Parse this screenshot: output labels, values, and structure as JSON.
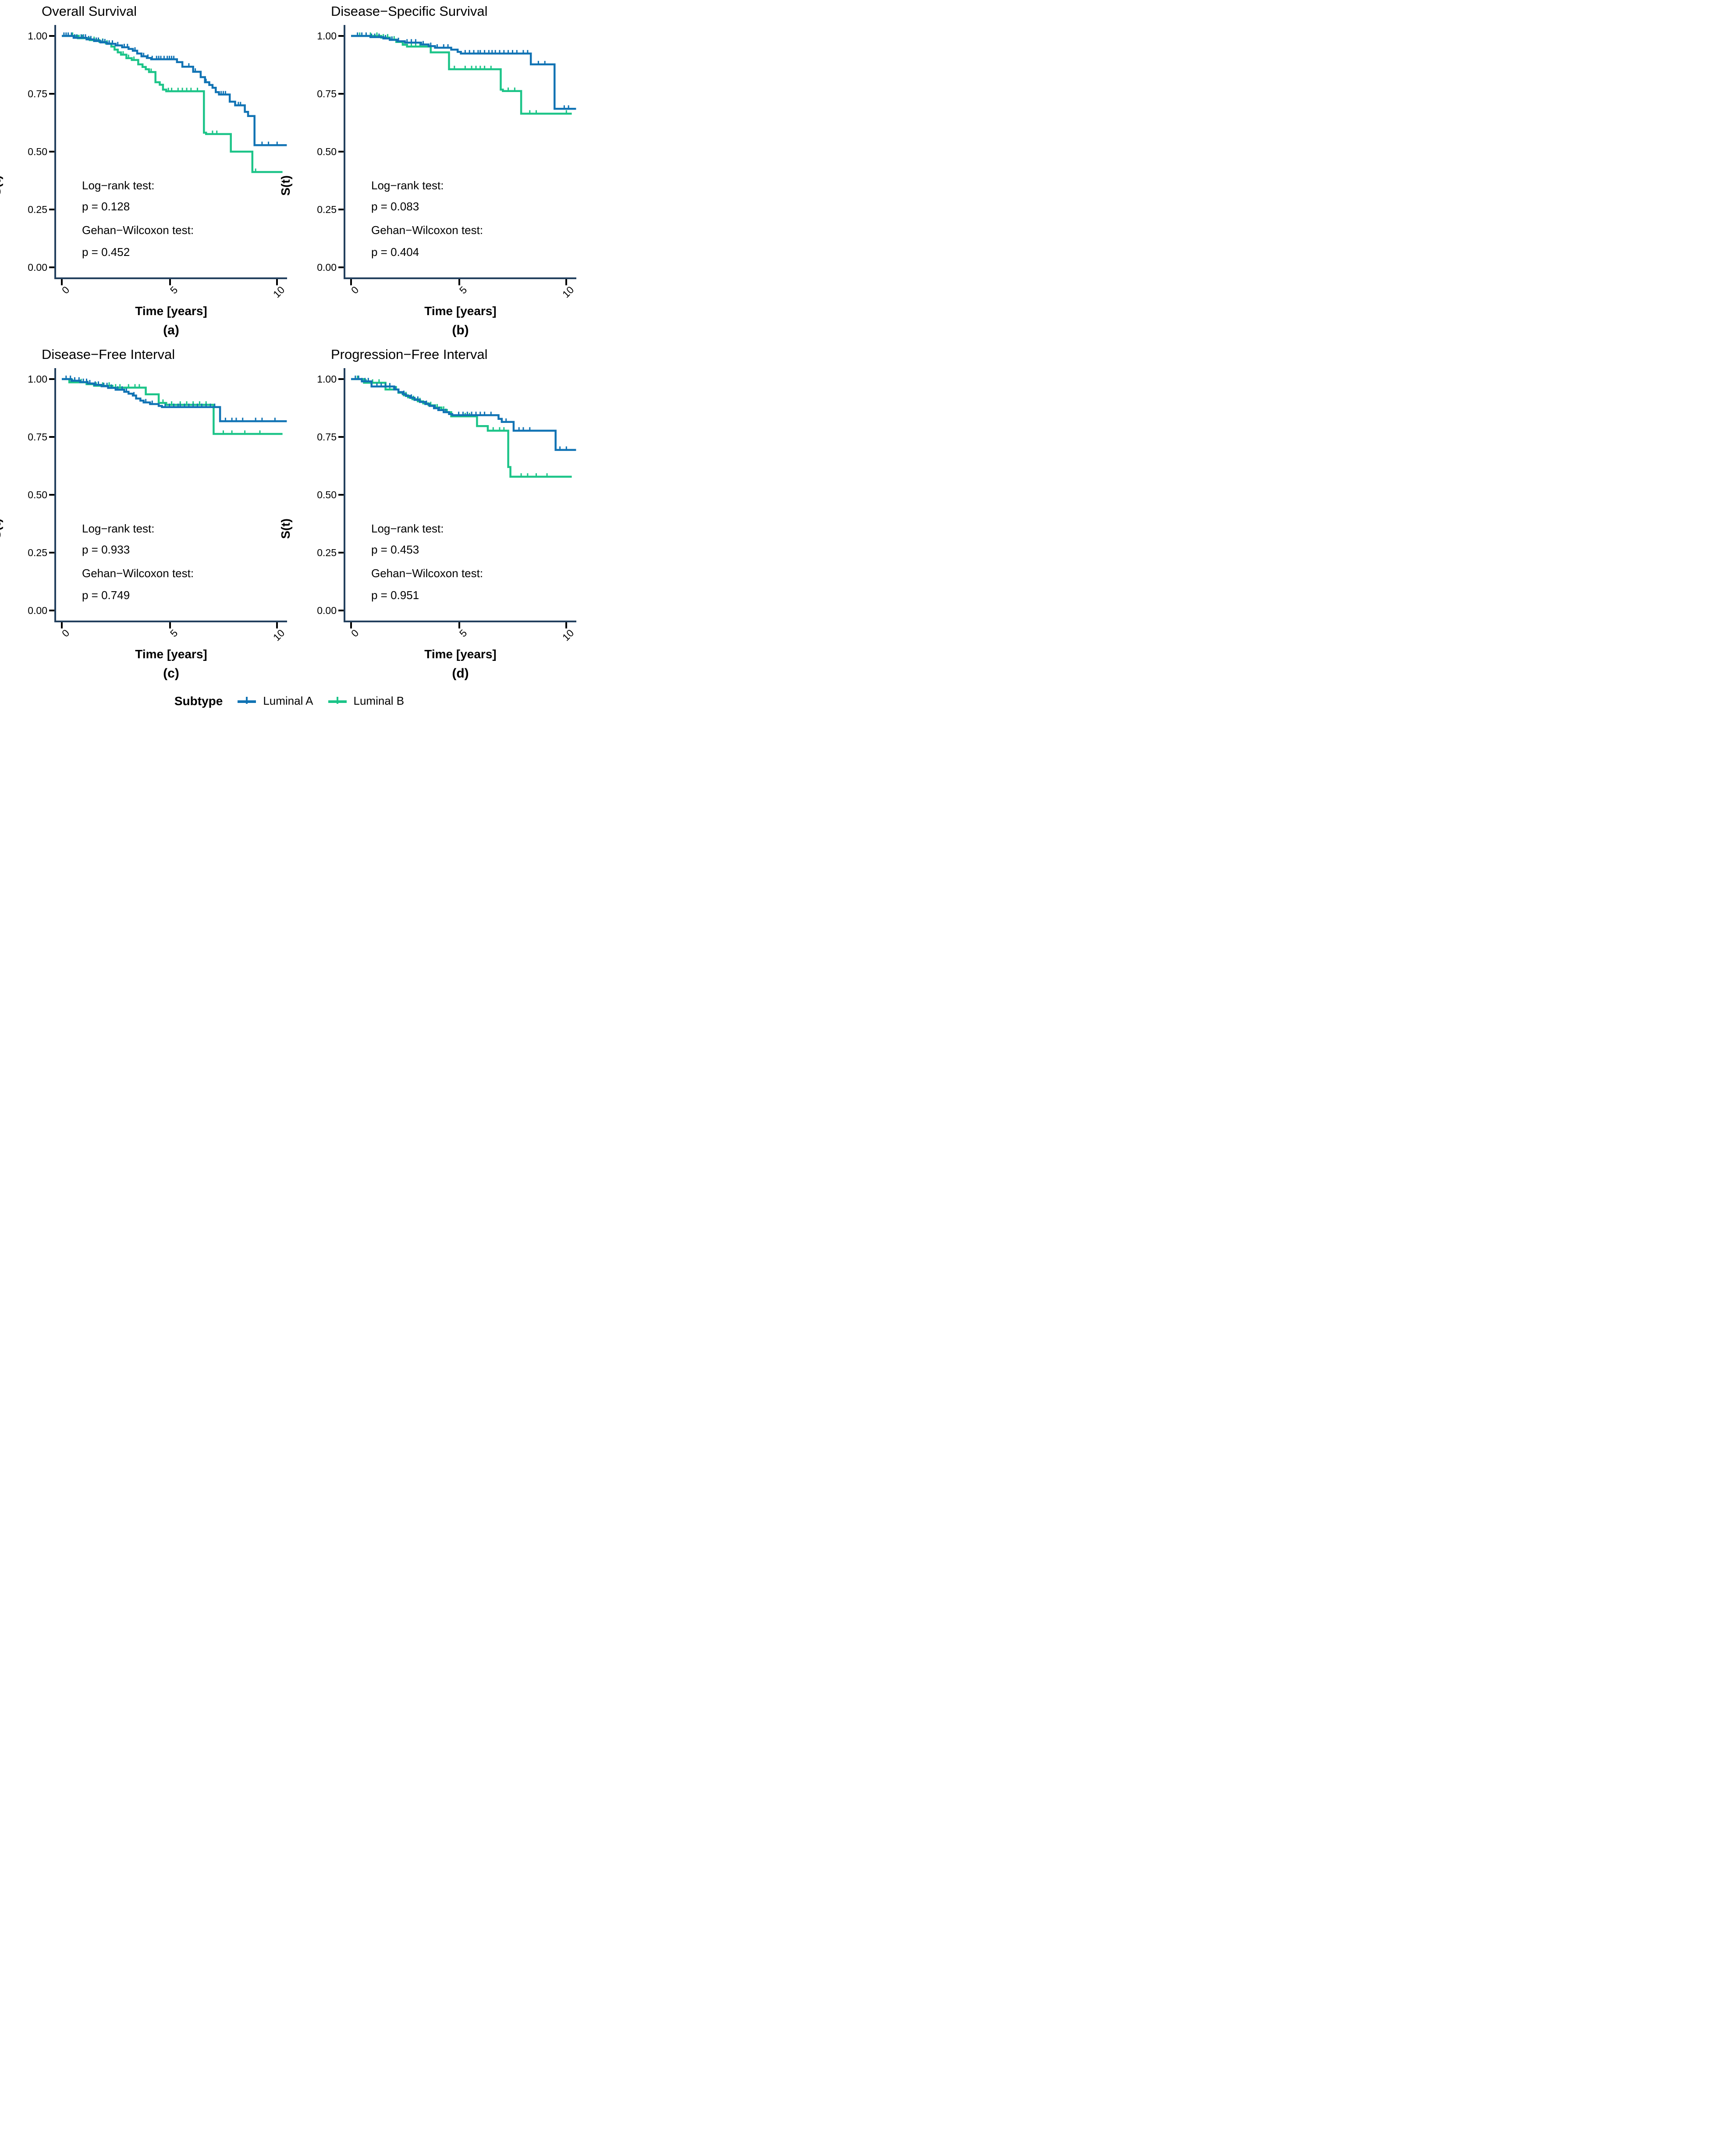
{
  "figure": {
    "y_label": "S(t)",
    "x_label": "Time [years]",
    "y_ticks": [
      "1.00",
      "0.75",
      "0.50",
      "0.25",
      "0.00"
    ],
    "x_ticks": [
      "0",
      "5",
      "10"
    ]
  },
  "colors": {
    "luminal_a": "#1173B4",
    "luminal_b": "#1CC488",
    "axis_line": "#23405E",
    "tick": "#000000",
    "text": "#000000"
  },
  "legend": {
    "title": "Subtype",
    "items": [
      {
        "label": "Luminal A",
        "color": "#1173B4"
      },
      {
        "label": "Luminal B",
        "color": "#1CC488"
      }
    ]
  },
  "chart_data": [
    {
      "type": "line",
      "subtype": "kaplan-meier-step",
      "title": "Overall Survival",
      "caption": "(a)",
      "xlabel": "Time [years]",
      "ylabel": "S(t)",
      "xlim": [
        0,
        10.5
      ],
      "ylim": [
        0,
        1.05
      ],
      "x_tick_values": [
        0,
        5,
        10
      ],
      "y_tick_values": [
        1.0,
        0.75,
        0.5,
        0.25,
        0.0
      ],
      "grid": false,
      "annotations": {
        "logrank_label": "Log−rank test:",
        "logrank_p": "p = 0.128",
        "wilcoxon_label": "Gehan−Wilcoxon test:",
        "wilcoxon_p": "p = 0.452"
      },
      "series": [
        {
          "name": "Luminal A",
          "color": "#1173B4",
          "end_t": 10.45,
          "step_points": [
            [
              0,
              1
            ],
            [
              0.55,
              0.992
            ],
            [
              1.15,
              0.985
            ],
            [
              1.5,
              0.978
            ],
            [
              1.8,
              0.972
            ],
            [
              2.1,
              0.966
            ],
            [
              2.5,
              0.959
            ],
            [
              2.8,
              0.951
            ],
            [
              3.1,
              0.944
            ],
            [
              3.3,
              0.936
            ],
            [
              3.5,
              0.924
            ],
            [
              3.7,
              0.912
            ],
            [
              3.95,
              0.905
            ],
            [
              4.15,
              0.899
            ],
            [
              5.35,
              0.887
            ],
            [
              5.6,
              0.867
            ],
            [
              6.1,
              0.845
            ],
            [
              6.45,
              0.822
            ],
            [
              6.65,
              0.8
            ],
            [
              6.85,
              0.788
            ],
            [
              7.0,
              0.776
            ],
            [
              7.15,
              0.757
            ],
            [
              7.3,
              0.747
            ],
            [
              7.8,
              0.716
            ],
            [
              8.05,
              0.7
            ],
            [
              8.5,
              0.672
            ],
            [
              8.65,
              0.654
            ],
            [
              8.95,
              0.528
            ]
          ],
          "censor_t": [
            0.1,
            0.2,
            0.3,
            0.45,
            0.6,
            0.7,
            0.9,
            1.0,
            1.1,
            1.25,
            1.35,
            1.6,
            1.7,
            1.9,
            2.0,
            2.2,
            2.35,
            2.6,
            2.9,
            3.05,
            3.4,
            3.8,
            4.0,
            4.2,
            4.4,
            4.5,
            4.6,
            4.75,
            4.9,
            5.0,
            5.1,
            5.2,
            5.9,
            6.2,
            6.7,
            7.4,
            7.5,
            7.6,
            8.2,
            8.3,
            9.3,
            9.6,
            10.0
          ]
        },
        {
          "name": "Luminal B",
          "color": "#1CC488",
          "end_t": 10.25,
          "step_points": [
            [
              0,
              1
            ],
            [
              0.75,
              0.99
            ],
            [
              1.3,
              0.982
            ],
            [
              1.75,
              0.974
            ],
            [
              2.05,
              0.967
            ],
            [
              2.3,
              0.954
            ],
            [
              2.45,
              0.941
            ],
            [
              2.6,
              0.929
            ],
            [
              2.75,
              0.919
            ],
            [
              3.0,
              0.904
            ],
            [
              3.25,
              0.896
            ],
            [
              3.55,
              0.877
            ],
            [
              3.75,
              0.866
            ],
            [
              3.9,
              0.856
            ],
            [
              4.05,
              0.844
            ],
            [
              4.35,
              0.8
            ],
            [
              4.55,
              0.789
            ],
            [
              4.7,
              0.768
            ],
            [
              4.85,
              0.761
            ],
            [
              6.6,
              0.582
            ],
            [
              6.7,
              0.576
            ],
            [
              7.85,
              0.5
            ],
            [
              8.85,
              0.412
            ]
          ],
          "censor_t": [
            0.5,
            0.8,
            0.95,
            1.1,
            1.5,
            1.9,
            2.1,
            2.85,
            3.1,
            3.35,
            4.15,
            4.95,
            5.1,
            5.4,
            5.6,
            5.8,
            6.0,
            6.3,
            7.0,
            7.2,
            9.0
          ]
        }
      ]
    },
    {
      "type": "line",
      "subtype": "kaplan-meier-step",
      "title": "Disease−Specific Survival",
      "caption": "(b)",
      "xlabel": "Time [years]",
      "ylabel": "S(t)",
      "xlim": [
        0,
        10.5
      ],
      "ylim": [
        0,
        1.05
      ],
      "x_tick_values": [
        0,
        5,
        10
      ],
      "y_tick_values": [
        1.0,
        0.75,
        0.5,
        0.25,
        0.0
      ],
      "grid": false,
      "annotations": {
        "logrank_label": "Log−rank test:",
        "logrank_p": "p = 0.083",
        "wilcoxon_label": "Gehan−Wilcoxon test:",
        "wilcoxon_p": "p = 0.404"
      },
      "series": [
        {
          "name": "Luminal A",
          "color": "#1173B4",
          "end_t": 10.45,
          "step_points": [
            [
              0,
              1
            ],
            [
              0.9,
              0.995
            ],
            [
              1.5,
              0.989
            ],
            [
              1.8,
              0.983
            ],
            [
              2.15,
              0.977
            ],
            [
              2.5,
              0.971
            ],
            [
              3.25,
              0.963
            ],
            [
              3.6,
              0.956
            ],
            [
              3.9,
              0.949
            ],
            [
              4.65,
              0.941
            ],
            [
              4.95,
              0.931
            ],
            [
              5.1,
              0.924
            ],
            [
              8.35,
              0.877
            ],
            [
              9.45,
              0.685
            ]
          ],
          "censor_t": [
            0.3,
            0.5,
            0.7,
            0.95,
            1.1,
            1.3,
            1.6,
            1.9,
            2.2,
            2.6,
            2.8,
            3.0,
            3.35,
            3.7,
            4.0,
            4.3,
            4.5,
            5.3,
            5.5,
            5.7,
            5.9,
            6.0,
            6.2,
            6.4,
            6.55,
            6.7,
            6.9,
            7.1,
            7.3,
            7.5,
            7.7,
            8.0,
            8.2,
            8.7,
            9.0,
            9.9,
            10.1
          ]
        },
        {
          "name": "Luminal B",
          "color": "#1CC488",
          "end_t": 10.25,
          "step_points": [
            [
              0,
              1
            ],
            [
              1.4,
              0.993
            ],
            [
              1.8,
              0.984
            ],
            [
              2.1,
              0.974
            ],
            [
              2.4,
              0.962
            ],
            [
              2.6,
              0.954
            ],
            [
              3.7,
              0.929
            ],
            [
              4.55,
              0.856
            ],
            [
              6.95,
              0.768
            ],
            [
              7.05,
              0.762
            ],
            [
              7.9,
              0.664
            ]
          ],
          "censor_t": [
            0.4,
            0.7,
            0.9,
            1.2,
            1.5,
            1.7,
            2.0,
            2.8,
            3.0,
            3.2,
            4.8,
            5.3,
            5.6,
            5.8,
            6.0,
            6.2,
            6.5,
            7.3,
            7.6,
            8.3,
            8.6,
            10.0
          ]
        }
      ]
    },
    {
      "type": "line",
      "subtype": "kaplan-meier-step",
      "title": "Disease−Free Interval",
      "caption": "(c)",
      "xlabel": "Time [years]",
      "ylabel": "S(t)",
      "xlim": [
        0,
        10.5
      ],
      "ylim": [
        0,
        1.05
      ],
      "x_tick_values": [
        0,
        5,
        10
      ],
      "y_tick_values": [
        1.0,
        0.75,
        0.5,
        0.25,
        0.0
      ],
      "grid": false,
      "annotations": {
        "logrank_label": "Log−rank test:",
        "logrank_p": "p = 0.933",
        "wilcoxon_label": "Gehan−Wilcoxon test:",
        "wilcoxon_p": "p = 0.749"
      },
      "series": [
        {
          "name": "Luminal A",
          "color": "#1173B4",
          "end_t": 10.45,
          "step_points": [
            [
              0,
              1
            ],
            [
              0.45,
              0.993
            ],
            [
              0.85,
              0.987
            ],
            [
              1.2,
              0.981
            ],
            [
              1.5,
              0.975
            ],
            [
              1.85,
              0.969
            ],
            [
              2.15,
              0.962
            ],
            [
              2.5,
              0.954
            ],
            [
              2.9,
              0.945
            ],
            [
              3.1,
              0.937
            ],
            [
              3.3,
              0.929
            ],
            [
              3.45,
              0.916
            ],
            [
              3.65,
              0.907
            ],
            [
              3.8,
              0.899
            ],
            [
              4.1,
              0.892
            ],
            [
              4.5,
              0.884
            ],
            [
              4.65,
              0.879
            ],
            [
              7.35,
              0.818
            ]
          ],
          "censor_t": [
            0.2,
            0.4,
            0.6,
            0.8,
            1.0,
            1.15,
            1.3,
            1.55,
            1.7,
            1.95,
            2.1,
            2.3,
            2.6,
            2.8,
            3.0,
            3.35,
            3.9,
            4.2,
            4.8,
            5.0,
            5.2,
            5.4,
            5.5,
            5.7,
            5.9,
            6.1,
            6.3,
            6.5,
            6.7,
            6.9,
            7.1,
            7.6,
            7.9,
            8.1,
            8.4,
            9.0,
            9.3,
            9.9
          ]
        },
        {
          "name": "Luminal B",
          "color": "#1CC488",
          "end_t": 10.25,
          "step_points": [
            [
              0,
              1
            ],
            [
              0.35,
              0.986
            ],
            [
              1.15,
              0.978
            ],
            [
              1.5,
              0.971
            ],
            [
              2.35,
              0.963
            ],
            [
              3.9,
              0.934
            ],
            [
              4.5,
              0.897
            ],
            [
              4.85,
              0.889
            ],
            [
              7.05,
              0.763
            ]
          ],
          "censor_t": [
            0.5,
            0.9,
            1.2,
            1.6,
            1.9,
            2.2,
            2.5,
            2.7,
            3.1,
            3.4,
            3.6,
            4.7,
            5.1,
            5.5,
            5.8,
            6.1,
            6.4,
            6.7,
            7.5,
            7.9,
            8.5,
            9.2
          ]
        }
      ]
    },
    {
      "type": "line",
      "subtype": "kaplan-meier-step",
      "title": "Progression−Free Interval",
      "caption": "(d)",
      "xlabel": "Time [years]",
      "ylabel": "S(t)",
      "xlim": [
        0,
        10.5
      ],
      "ylim": [
        0,
        1.05
      ],
      "x_tick_values": [
        0,
        5,
        10
      ],
      "y_tick_values": [
        1.0,
        0.75,
        0.5,
        0.25,
        0.0
      ],
      "grid": false,
      "annotations": {
        "logrank_label": "Log−rank test:",
        "logrank_p": "p = 0.453",
        "wilcoxon_label": "Gehan−Wilcoxon test:",
        "wilcoxon_p": "p = 0.951"
      },
      "series": [
        {
          "name": "Luminal A",
          "color": "#1173B4",
          "end_t": 10.45,
          "step_points": [
            [
              0,
              1
            ],
            [
              0.5,
              0.99
            ],
            [
              0.95,
              0.968
            ],
            [
              2.0,
              0.955
            ],
            [
              2.2,
              0.944
            ],
            [
              2.4,
              0.935
            ],
            [
              2.55,
              0.927
            ],
            [
              2.75,
              0.919
            ],
            [
              2.95,
              0.91
            ],
            [
              3.2,
              0.901
            ],
            [
              3.45,
              0.892
            ],
            [
              3.65,
              0.884
            ],
            [
              3.85,
              0.874
            ],
            [
              4.05,
              0.866
            ],
            [
              4.3,
              0.857
            ],
            [
              4.55,
              0.849
            ],
            [
              4.7,
              0.844
            ],
            [
              6.85,
              0.828
            ],
            [
              7.0,
              0.815
            ],
            [
              7.55,
              0.777
            ],
            [
              9.5,
              0.694
            ]
          ],
          "censor_t": [
            0.2,
            0.35,
            0.5,
            0.65,
            0.8,
            1.2,
            1.4,
            1.6,
            1.8,
            2.05,
            2.45,
            2.8,
            3.1,
            3.5,
            3.9,
            4.1,
            4.4,
            5.0,
            5.2,
            5.4,
            5.6,
            5.8,
            6.0,
            6.2,
            6.5,
            7.2,
            7.8,
            8.0,
            8.3,
            9.7,
            10.0
          ]
        },
        {
          "name": "Luminal B",
          "color": "#1CC488",
          "end_t": 10.25,
          "step_points": [
            [
              0,
              1
            ],
            [
              0.6,
              0.984
            ],
            [
              1.6,
              0.955
            ],
            [
              2.2,
              0.941
            ],
            [
              2.45,
              0.93
            ],
            [
              2.65,
              0.921
            ],
            [
              2.85,
              0.913
            ],
            [
              3.1,
              0.904
            ],
            [
              3.35,
              0.895
            ],
            [
              3.6,
              0.887
            ],
            [
              3.9,
              0.877
            ],
            [
              4.2,
              0.867
            ],
            [
              4.45,
              0.857
            ],
            [
              4.65,
              0.839
            ],
            [
              5.85,
              0.797
            ],
            [
              6.35,
              0.777
            ],
            [
              7.3,
              0.62
            ],
            [
              7.4,
              0.578
            ]
          ],
          "censor_t": [
            0.3,
            0.7,
            1.0,
            1.3,
            1.8,
            2.1,
            2.55,
            2.9,
            3.2,
            3.7,
            4.0,
            4.3,
            5.0,
            5.3,
            5.5,
            6.6,
            6.9,
            7.1,
            7.9,
            8.2,
            8.6,
            9.1
          ]
        }
      ]
    }
  ]
}
